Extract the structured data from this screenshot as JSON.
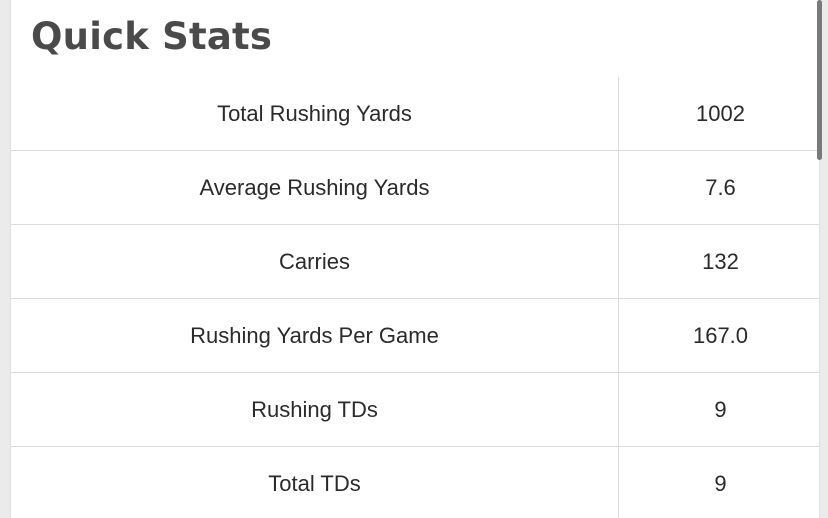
{
  "page": {
    "title": "Quick Stats"
  },
  "stats": [
    {
      "label": "Total Rushing Yards",
      "value": "1002"
    },
    {
      "label": "Average Rushing Yards",
      "value": "7.6"
    },
    {
      "label": "Carries",
      "value": "132"
    },
    {
      "label": "Rushing Yards Per Game",
      "value": "167.0"
    },
    {
      "label": "Rushing TDs",
      "value": "9"
    },
    {
      "label": "Total TDs",
      "value": "9"
    }
  ]
}
